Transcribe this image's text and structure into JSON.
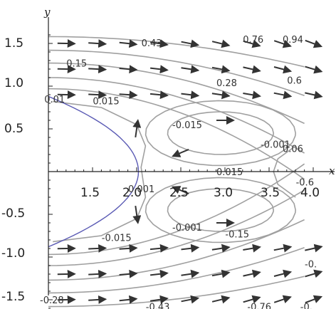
{
  "chart_data": {
    "type": "contour",
    "title": "",
    "xlabel": "x",
    "ylabel": "y",
    "xlim": [
      1.0,
      4.0
    ],
    "ylim": [
      -1.6,
      1.6
    ],
    "x_ticks": [
      "1.5",
      "2.0",
      "2.5",
      "3.0",
      "3.5",
      "4.0"
    ],
    "y_ticks": [
      "1.5",
      "1.0",
      "0.5",
      "-0.5",
      "-1.0",
      "-1.5"
    ],
    "grid": false,
    "boundary_curve_color": "#5a5ab4",
    "contour_color": "#a0a0a0",
    "contour_labels": [
      {
        "text": "0.43",
        "x": 2.15,
        "y": 1.51
      },
      {
        "text": "0.76",
        "x": 3.3,
        "y": 1.55
      },
      {
        "text": "0.94",
        "x": 3.75,
        "y": 1.55
      },
      {
        "text": "0.15",
        "x": 1.3,
        "y": 1.27
      },
      {
        "text": "0.28",
        "x": 3.0,
        "y": 1.04
      },
      {
        "text": "0.6",
        "x": 3.8,
        "y": 1.07
      },
      {
        "text": "0.01",
        "x": 1.05,
        "y": 0.85
      },
      {
        "text": "0.015",
        "x": 1.6,
        "y": 0.83
      },
      {
        "text": "-0.015",
        "x": 2.5,
        "y": 0.55
      },
      {
        "text": "-0.001",
        "x": 3.5,
        "y": 0.32
      },
      {
        "text": "0.06",
        "x": 3.75,
        "y": 0.27
      },
      {
        "text": "0.015",
        "x": 3.0,
        "y": 0.0
      },
      {
        "text": "0.001",
        "x": 2.0,
        "y": -0.2
      },
      {
        "text": "-0.6",
        "x": 3.9,
        "y": -0.12
      },
      {
        "text": "-0.001",
        "x": 2.5,
        "y": -0.65
      },
      {
        "text": "-0.015",
        "x": 1.7,
        "y": -0.77
      },
      {
        "text": "-0.15",
        "x": 3.1,
        "y": -0.73
      },
      {
        "text": "-0.",
        "x": 4.0,
        "y": -1.08
      },
      {
        "text": "-0.28",
        "x": 1.0,
        "y": -1.5
      },
      {
        "text": "-0.43",
        "x": 2.2,
        "y": -1.58
      },
      {
        "text": "-0.76",
        "x": 3.35,
        "y": -1.58
      },
      {
        "text": "-0.",
        "x": 3.95,
        "y": -1.58
      }
    ]
  }
}
